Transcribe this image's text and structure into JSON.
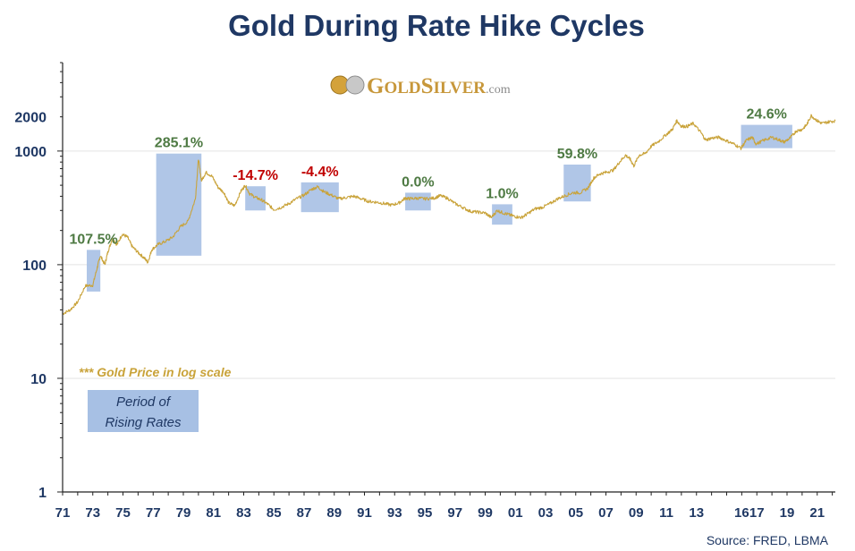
{
  "chart_data": {
    "type": "line",
    "title": "Gold During Rate Hike Cycles",
    "y_scale": "log",
    "ylim": [
      1,
      6000
    ],
    "y_ticks": [
      {
        "value": 1,
        "label": "1"
      },
      {
        "value": 10,
        "label": "10"
      },
      {
        "value": 100,
        "label": "100"
      },
      {
        "value": 1000,
        "label": "1000"
      },
      {
        "value": 2000,
        "label": "2000"
      }
    ],
    "xlim": [
      1971,
      2022.2
    ],
    "x_ticks": [
      {
        "value": 1971,
        "label": "71"
      },
      {
        "value": 1973,
        "label": "73"
      },
      {
        "value": 1975,
        "label": "75"
      },
      {
        "value": 1977,
        "label": "77"
      },
      {
        "value": 1979,
        "label": "79"
      },
      {
        "value": 1981,
        "label": "81"
      },
      {
        "value": 1983,
        "label": "83"
      },
      {
        "value": 1985,
        "label": "85"
      },
      {
        "value": 1987,
        "label": "87"
      },
      {
        "value": 1989,
        "label": "89"
      },
      {
        "value": 1991,
        "label": "91"
      },
      {
        "value": 1993,
        "label": "93"
      },
      {
        "value": 1995,
        "label": "95"
      },
      {
        "value": 1997,
        "label": "97"
      },
      {
        "value": 1999,
        "label": "99"
      },
      {
        "value": 2001,
        "label": "01"
      },
      {
        "value": 2003,
        "label": "03"
      },
      {
        "value": 2005,
        "label": "05"
      },
      {
        "value": 2007,
        "label": "07"
      },
      {
        "value": 2009,
        "label": "09"
      },
      {
        "value": 2011,
        "label": "11"
      },
      {
        "value": 2013,
        "label": "13"
      },
      {
        "value": 2016,
        "label": "16"
      },
      {
        "value": 2017,
        "label": "17"
      },
      {
        "value": 2019,
        "label": "19"
      },
      {
        "value": 2021,
        "label": "21"
      }
    ],
    "series": [
      {
        "name": "Gold Price",
        "color": "#c9a33a",
        "points": [
          [
            1971.0,
            37
          ],
          [
            1971.5,
            40
          ],
          [
            1972.0,
            47
          ],
          [
            1972.5,
            65
          ],
          [
            1973.0,
            66
          ],
          [
            1973.3,
            95
          ],
          [
            1973.5,
            120
          ],
          [
            1973.8,
            100
          ],
          [
            1974.0,
            130
          ],
          [
            1974.3,
            170
          ],
          [
            1974.6,
            150
          ],
          [
            1974.95,
            185
          ],
          [
            1975.3,
            175
          ],
          [
            1975.6,
            145
          ],
          [
            1976.0,
            128
          ],
          [
            1976.4,
            115
          ],
          [
            1976.65,
            105
          ],
          [
            1976.9,
            135
          ],
          [
            1977.3,
            150
          ],
          [
            1977.8,
            160
          ],
          [
            1978.3,
            175
          ],
          [
            1978.8,
            215
          ],
          [
            1979.3,
            240
          ],
          [
            1979.8,
            380
          ],
          [
            1980.0,
            850
          ],
          [
            1980.2,
            550
          ],
          [
            1980.5,
            650
          ],
          [
            1980.9,
            600
          ],
          [
            1981.3,
            480
          ],
          [
            1981.7,
            430
          ],
          [
            1982.0,
            350
          ],
          [
            1982.4,
            330
          ],
          [
            1982.8,
            440
          ],
          [
            1983.1,
            500
          ],
          [
            1983.4,
            420
          ],
          [
            1983.8,
            390
          ],
          [
            1984.2,
            370
          ],
          [
            1984.6,
            340
          ],
          [
            1985.0,
            305
          ],
          [
            1985.5,
            320
          ],
          [
            1986.0,
            345
          ],
          [
            1986.5,
            380
          ],
          [
            1987.0,
            410
          ],
          [
            1987.5,
            460
          ],
          [
            1987.9,
            485
          ],
          [
            1988.3,
            440
          ],
          [
            1988.8,
            410
          ],
          [
            1989.3,
            380
          ],
          [
            1989.8,
            390
          ],
          [
            1990.3,
            400
          ],
          [
            1990.8,
            380
          ],
          [
            1991.3,
            360
          ],
          [
            1991.8,
            355
          ],
          [
            1992.3,
            345
          ],
          [
            1992.8,
            335
          ],
          [
            1993.3,
            350
          ],
          [
            1993.7,
            385
          ],
          [
            1994.0,
            380
          ],
          [
            1994.5,
            385
          ],
          [
            1995.0,
            380
          ],
          [
            1995.6,
            385
          ],
          [
            1996.0,
            405
          ],
          [
            1996.5,
            385
          ],
          [
            1997.0,
            345
          ],
          [
            1997.5,
            320
          ],
          [
            1998.0,
            295
          ],
          [
            1998.5,
            290
          ],
          [
            1999.0,
            285
          ],
          [
            1999.4,
            260
          ],
          [
            1999.8,
            300
          ],
          [
            2000.2,
            285
          ],
          [
            2000.6,
            275
          ],
          [
            2001.0,
            265
          ],
          [
            2001.4,
            260
          ],
          [
            2001.8,
            280
          ],
          [
            2002.3,
            310
          ],
          [
            2002.8,
            320
          ],
          [
            2003.3,
            345
          ],
          [
            2003.8,
            380
          ],
          [
            2004.3,
            405
          ],
          [
            2004.8,
            430
          ],
          [
            2005.3,
            430
          ],
          [
            2005.8,
            470
          ],
          [
            2006.2,
            580
          ],
          [
            2006.6,
            630
          ],
          [
            2007.0,
            650
          ],
          [
            2007.5,
            680
          ],
          [
            2007.9,
            800
          ],
          [
            2008.3,
            920
          ],
          [
            2008.6,
            850
          ],
          [
            2008.85,
            740
          ],
          [
            2009.2,
            920
          ],
          [
            2009.6,
            950
          ],
          [
            2010.0,
            1100
          ],
          [
            2010.5,
            1220
          ],
          [
            2011.0,
            1400
          ],
          [
            2011.4,
            1550
          ],
          [
            2011.7,
            1850
          ],
          [
            2012.0,
            1650
          ],
          [
            2012.4,
            1650
          ],
          [
            2012.8,
            1750
          ],
          [
            2013.3,
            1450
          ],
          [
            2013.6,
            1250
          ],
          [
            2014.0,
            1300
          ],
          [
            2014.5,
            1320
          ],
          [
            2015.0,
            1230
          ],
          [
            2015.5,
            1150
          ],
          [
            2015.95,
            1060
          ],
          [
            2016.3,
            1240
          ],
          [
            2016.7,
            1320
          ],
          [
            2016.95,
            1150
          ],
          [
            2017.5,
            1250
          ],
          [
            2018.0,
            1320
          ],
          [
            2018.5,
            1250
          ],
          [
            2018.8,
            1200
          ],
          [
            2019.2,
            1300
          ],
          [
            2019.6,
            1500
          ],
          [
            2020.0,
            1550
          ],
          [
            2020.3,
            1700
          ],
          [
            2020.6,
            2050
          ],
          [
            2021.0,
            1850
          ],
          [
            2021.3,
            1750
          ],
          [
            2021.7,
            1800
          ],
          [
            2022.2,
            1850
          ]
        ]
      }
    ],
    "annotations": [
      {
        "label": "107.5%",
        "color": "#4e7a43",
        "x0": 1972.6,
        "x1": 1973.5,
        "y0": 58,
        "y1": 135
      },
      {
        "label": "285.1%",
        "color": "#4e7a43",
        "x0": 1977.2,
        "x1": 1980.2,
        "y0": 120,
        "y1": 950
      },
      {
        "label": "-14.7%",
        "color": "#c00000",
        "x0": 1983.1,
        "x1": 1984.45,
        "y0": 300,
        "y1": 490
      },
      {
        "label": "-4.4%",
        "color": "#c00000",
        "x0": 1986.8,
        "x1": 1989.3,
        "y0": 290,
        "y1": 530
      },
      {
        "label": "0.0%",
        "color": "#4e7a43",
        "x0": 1993.7,
        "x1": 1995.4,
        "y0": 300,
        "y1": 430
      },
      {
        "label": "1.0%",
        "color": "#4e7a43",
        "x0": 1999.45,
        "x1": 2000.8,
        "y0": 225,
        "y1": 340
      },
      {
        "label": "59.8%",
        "color": "#4e7a43",
        "x0": 2004.2,
        "x1": 2006.0,
        "y0": 360,
        "y1": 760
      },
      {
        "label": "24.6%",
        "color": "#4e7a43",
        "x0": 2015.95,
        "x1": 2019.35,
        "y0": 1060,
        "y1": 1700
      }
    ],
    "note": "*** Gold Price in log  scale",
    "legend": {
      "line1": "Period of",
      "line2": "Rising Rates"
    },
    "source": "Source: FRED, LBMA",
    "logo": {
      "big1": "G",
      "small1": "OLD",
      "big2": "S",
      "small2": "ILVER",
      "suffix": ".com"
    },
    "colors": {
      "title": "#1f3864",
      "line": "#c9a33a",
      "shade": "#a7c0e4",
      "grid": "#e3e3e3",
      "positive": "#4e7a43",
      "negative": "#c00000"
    }
  }
}
